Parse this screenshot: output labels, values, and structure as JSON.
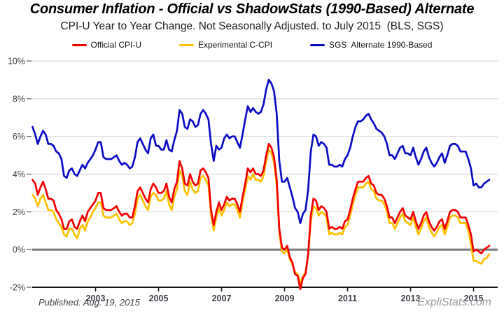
{
  "header": {
    "title": "Consumer Inflation - Official vs ShadowStats (1990-Based) Alternate",
    "subtitle": "CPI-U Year to Year Change. Not Seasonally Adjusted. to July 2015  (BLS, SGS)"
  },
  "legend": {
    "items": [
      {
        "label": "Official CPI-U",
        "color": "#f40000"
      },
      {
        "label": "Experimental C-CPI",
        "color": "#ffc000"
      },
      {
        "label": "SGS  Alternate 1990-Based",
        "color": "#0b0bc4"
      }
    ]
  },
  "footer": {
    "published": "Published: Aug. 19, 2015",
    "brand": "ExpliStats.com"
  },
  "chart_data": {
    "type": "line",
    "title": "Consumer Inflation - Official vs ShadowStats (1990-Based) Alternate",
    "subtitle": "CPI-U Year to Year Change. Not Seasonally Adjusted. to July 2015  (BLS, SGS)",
    "x_unit": "month",
    "x_start_year": 2001.0,
    "x_end_label": "July 2015",
    "xlim": [
      2001.0,
      2015.77
    ],
    "ylim": [
      -2,
      10
    ],
    "grid": "horizontal",
    "legend_position": "top",
    "x_ticks": [
      2003,
      2005,
      2007,
      2009,
      2011,
      2013,
      2015
    ],
    "y_ticks": [
      {
        "label": "10%",
        "value": 10
      },
      {
        "label": "8%",
        "value": 8
      },
      {
        "label": "6%",
        "value": 6
      },
      {
        "label": "4%",
        "value": 4
      },
      {
        "label": "2%",
        "value": 2
      },
      {
        "label": "0%",
        "value": 0
      },
      {
        "label": "-2%",
        "value": -2
      }
    ],
    "series": [
      {
        "name": "Official CPI-U",
        "color": "#f40000",
        "values": [
          3.7,
          3.5,
          2.9,
          3.3,
          3.6,
          3.2,
          2.7,
          2.7,
          2.6,
          2.1,
          1.9,
          1.6,
          1.1,
          1.1,
          1.5,
          1.6,
          1.2,
          1.1,
          1.5,
          1.8,
          1.5,
          2.0,
          2.2,
          2.4,
          2.6,
          3.0,
          3.0,
          2.2,
          2.1,
          2.1,
          2.1,
          2.2,
          2.3,
          2.0,
          1.8,
          1.9,
          1.9,
          1.7,
          1.7,
          2.3,
          3.1,
          3.3,
          3.0,
          2.7,
          2.5,
          3.2,
          3.5,
          3.3,
          3.0,
          3.0,
          3.1,
          3.5,
          2.8,
          2.5,
          3.2,
          3.6,
          4.7,
          4.3,
          3.5,
          3.4,
          4.0,
          3.6,
          3.4,
          3.5,
          4.2,
          4.3,
          4.1,
          3.8,
          2.1,
          1.3,
          2.0,
          2.5,
          2.1,
          2.4,
          2.8,
          2.6,
          2.7,
          2.7,
          2.4,
          2.0,
          2.8,
          3.5,
          4.3,
          4.1,
          4.3,
          4.0,
          4.0,
          3.9,
          4.2,
          5.0,
          5.6,
          5.4,
          4.9,
          3.7,
          1.1,
          0.1,
          0.0,
          0.2,
          -0.4,
          -0.7,
          -1.3,
          -1.4,
          -2.1,
          -1.5,
          -1.3,
          -0.2,
          1.8,
          2.7,
          2.6,
          2.1,
          2.3,
          2.2,
          2.0,
          1.1,
          1.2,
          1.1,
          1.1,
          1.2,
          1.1,
          1.5,
          1.6,
          2.1,
          2.7,
          3.2,
          3.6,
          3.6,
          3.6,
          3.8,
          3.9,
          3.5,
          3.4,
          3.0,
          2.9,
          2.9,
          2.7,
          2.3,
          1.7,
          1.7,
          1.4,
          1.7,
          2.0,
          2.2,
          1.8,
          1.7,
          1.6,
          2.0,
          1.5,
          1.1,
          1.4,
          1.8,
          2.0,
          1.5,
          1.2,
          1.0,
          1.2,
          1.5,
          1.6,
          1.1,
          1.5,
          2.0,
          2.1,
          2.1,
          2.0,
          1.7,
          1.7,
          1.7,
          1.3,
          0.8,
          -0.1,
          0.0,
          -0.1,
          -0.2,
          0.0,
          0.1,
          0.2
        ]
      },
      {
        "name": "Experimental C-CPI",
        "color": "#ffc000",
        "values": [
          2.9,
          2.7,
          2.3,
          2.7,
          2.9,
          2.5,
          2.1,
          2.1,
          2.0,
          1.6,
          1.4,
          1.2,
          0.8,
          0.7,
          1.1,
          1.1,
          0.8,
          0.6,
          1.1,
          1.3,
          1.0,
          1.5,
          1.7,
          2.0,
          2.2,
          2.5,
          2.5,
          1.8,
          1.7,
          1.7,
          1.7,
          1.8,
          1.9,
          1.6,
          1.4,
          1.5,
          1.5,
          1.3,
          1.4,
          1.9,
          2.7,
          2.9,
          2.6,
          2.3,
          2.1,
          2.8,
          3.0,
          2.9,
          2.6,
          2.6,
          2.7,
          3.1,
          2.4,
          2.1,
          2.8,
          3.2,
          4.2,
          3.9,
          3.1,
          2.9,
          3.6,
          3.2,
          3.0,
          3.1,
          3.8,
          3.9,
          3.7,
          3.4,
          1.8,
          1.0,
          1.7,
          2.2,
          1.8,
          2.1,
          2.5,
          2.3,
          2.4,
          2.4,
          2.1,
          1.7,
          2.5,
          3.2,
          3.9,
          3.7,
          4.0,
          3.7,
          3.7,
          3.6,
          3.9,
          4.7,
          5.3,
          5.1,
          4.6,
          3.4,
          0.9,
          -0.1,
          -0.2,
          0.0,
          -0.5,
          -0.8,
          -1.2,
          -1.3,
          -1.8,
          -1.4,
          -1.2,
          -0.3,
          1.5,
          2.3,
          2.2,
          1.8,
          2.0,
          1.9,
          1.7,
          0.8,
          0.9,
          0.8,
          0.8,
          0.9,
          0.8,
          1.2,
          1.3,
          1.8,
          2.4,
          2.9,
          3.3,
          3.3,
          3.3,
          3.5,
          3.6,
          3.2,
          3.1,
          2.7,
          2.6,
          2.6,
          2.4,
          2.0,
          1.4,
          1.4,
          1.1,
          1.4,
          1.7,
          1.9,
          1.5,
          1.4,
          1.3,
          1.7,
          1.2,
          0.8,
          1.1,
          1.5,
          1.7,
          1.2,
          0.9,
          0.7,
          0.9,
          1.2,
          1.3,
          0.8,
          1.2,
          1.7,
          1.8,
          1.8,
          1.7,
          1.4,
          1.4,
          1.4,
          1.0,
          0.3,
          -0.6,
          -0.6,
          -0.7,
          -0.75,
          -0.5,
          -0.45,
          -0.25
        ]
      },
      {
        "name": "SGS Alternate 1990-Based",
        "color": "#0b0bc4",
        "values": [
          6.5,
          6.1,
          5.6,
          6.0,
          6.3,
          6.1,
          5.6,
          5.6,
          5.5,
          5.2,
          5.1,
          4.8,
          3.9,
          3.8,
          4.2,
          4.3,
          4.0,
          3.9,
          4.2,
          4.5,
          4.3,
          4.6,
          4.8,
          5.0,
          5.3,
          5.7,
          5.7,
          4.9,
          4.8,
          4.8,
          4.8,
          4.9,
          5.0,
          4.7,
          4.5,
          4.6,
          4.5,
          4.3,
          4.4,
          4.9,
          5.7,
          5.9,
          5.6,
          5.3,
          5.1,
          5.9,
          6.1,
          5.5,
          5.5,
          5.3,
          5.3,
          5.8,
          5.3,
          5.2,
          5.8,
          6.3,
          7.4,
          7.2,
          6.5,
          6.4,
          6.9,
          6.8,
          6.5,
          6.6,
          7.2,
          7.4,
          7.2,
          6.9,
          5.6,
          4.7,
          5.5,
          5.3,
          5.4,
          5.9,
          6.1,
          5.9,
          6.0,
          6.0,
          5.7,
          5.4,
          6.1,
          6.9,
          7.6,
          7.3,
          7.5,
          7.3,
          7.2,
          7.3,
          7.7,
          8.5,
          9.0,
          8.8,
          8.4,
          7.2,
          4.7,
          3.6,
          3.6,
          3.8,
          3.3,
          2.8,
          2.2,
          2.0,
          1.4,
          1.9,
          2.1,
          3.2,
          5.2,
          6.1,
          6.0,
          5.5,
          5.7,
          5.6,
          5.4,
          4.5,
          4.5,
          4.4,
          4.4,
          4.5,
          4.4,
          4.8,
          5.0,
          5.4,
          6.0,
          6.5,
          6.8,
          6.8,
          6.9,
          7.1,
          7.2,
          6.9,
          6.7,
          6.4,
          6.3,
          6.2,
          6.0,
          5.6,
          5.0,
          5.0,
          4.8,
          5.1,
          5.4,
          5.5,
          5.1,
          5.1,
          5.0,
          5.4,
          4.9,
          4.5,
          4.8,
          5.2,
          5.4,
          4.9,
          4.6,
          4.4,
          4.6,
          4.9,
          5.1,
          4.6,
          5.0,
          5.5,
          5.6,
          5.6,
          5.5,
          5.2,
          5.2,
          5.2,
          4.8,
          4.3,
          3.4,
          3.5,
          3.3,
          3.3,
          3.5,
          3.6,
          3.7
        ]
      }
    ]
  },
  "style_colors": {
    "grid": "#d9d9d9",
    "zero_line": "#7a7a7a",
    "axis": "#141414",
    "tick_label": "#3e3e48"
  }
}
